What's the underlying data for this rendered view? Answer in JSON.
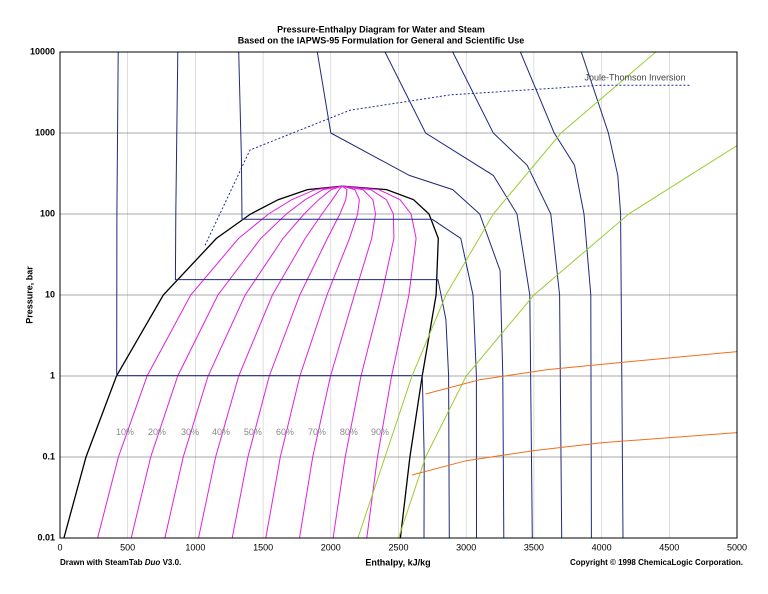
{
  "chart_data": {
    "type": "line",
    "title": "Pressure-Enthalpy Diagram for Water and Steam",
    "subtitle": "Based on the IAPWS-95 Formulation for General and Scientific Use",
    "x_label": "Enthalpy, kJ/kg",
    "y_label": "Pressure, bar",
    "note_left": {
      "prefix": "Drawn with SteamTab",
      "product": "Duo",
      "suffix": "V3.0."
    },
    "note_right": "Copyright © 1998 ChemicaLogic Corporation.",
    "xlim": [
      0,
      5000
    ],
    "ylim": [
      0.01,
      10000
    ],
    "log_y": true,
    "grid": true,
    "xticks": [
      0,
      500,
      1000,
      1500,
      2000,
      2500,
      3000,
      3500,
      4000,
      4500,
      5000
    ],
    "yticks": [
      0.01,
      0.1,
      1,
      10,
      100,
      1000,
      10000
    ],
    "annotations": [
      {
        "text": "Joule-Thomson Inversion",
        "x": 4247,
        "y": 4780,
        "color": "#444444"
      },
      {
        "text": "10%",
        "x": 480,
        "y": 0.2,
        "color": "#888888"
      },
      {
        "text": "20%",
        "x": 716,
        "y": 0.2,
        "color": "#888888"
      },
      {
        "text": "30%",
        "x": 960,
        "y": 0.2,
        "color": "#888888"
      },
      {
        "text": "40%",
        "x": 1189,
        "y": 0.2,
        "color": "#888888"
      },
      {
        "text": "50%",
        "x": 1425,
        "y": 0.2,
        "color": "#888888"
      },
      {
        "text": "60%",
        "x": 1662,
        "y": 0.2,
        "color": "#888888"
      },
      {
        "text": "70%",
        "x": 1898,
        "y": 0.2,
        "color": "#888888"
      },
      {
        "text": "80%",
        "x": 2134,
        "y": 0.2,
        "color": "#888888"
      },
      {
        "text": "90%",
        "x": 2363,
        "y": 0.2,
        "color": "#888888"
      }
    ],
    "series": [
      {
        "color": "#000000",
        "width": 1.3,
        "x": [
          29,
          192,
          417,
          763,
          1155,
          1408,
          1611,
          1827,
          2084,
          2412,
          2611,
          2725,
          2794,
          2778,
          2675,
          2584,
          2514
        ],
        "values": [
          0.01,
          0.1,
          1,
          10,
          50,
          100,
          150,
          200,
          220.6,
          200,
          150,
          100,
          50,
          10,
          1,
          0.1,
          0.01
        ]
      },
      {
        "color": "#e020e0",
        "width": 1,
        "x": [
          278,
          431,
          643,
          965,
          1319,
          1540,
          1711,
          1886,
          2084
        ],
        "values": [
          0.01,
          0.1,
          1,
          10,
          50,
          100,
          150,
          200,
          220.6
        ]
      },
      {
        "color": "#e020e0",
        "width": 1,
        "x": [
          526,
          670,
          869,
          1166,
          1483,
          1671,
          1811,
          1944,
          2084
        ],
        "values": [
          0.01,
          0.1,
          1,
          10,
          50,
          100,
          150,
          200,
          220.6
        ]
      },
      {
        "color": "#e020e0",
        "width": 1,
        "x": [
          775,
          910,
          1094,
          1368,
          1647,
          1803,
          1911,
          2003,
          2084
        ],
        "values": [
          0.01,
          0.1,
          1,
          10,
          50,
          100,
          150,
          200,
          220.6
        ]
      },
      {
        "color": "#e020e0",
        "width": 1,
        "x": [
          1023,
          1149,
          1320,
          1569,
          1811,
          1935,
          2011,
          2061,
          2084
        ],
        "values": [
          0.01,
          0.1,
          1,
          10,
          50,
          100,
          150,
          200,
          220.6
        ]
      },
      {
        "color": "#e020e0",
        "width": 1,
        "x": [
          1272,
          1388,
          1546,
          1771,
          1975,
          2067,
          2111,
          2120,
          2084
        ],
        "values": [
          0.01,
          0.1,
          1,
          10,
          50,
          100,
          150,
          200,
          220.6
        ]
      },
      {
        "color": "#e020e0",
        "width": 1,
        "x": [
          1520,
          1627,
          1772,
          1972,
          2138,
          2198,
          2211,
          2178,
          2084
        ],
        "values": [
          0.01,
          0.1,
          1,
          10,
          50,
          100,
          150,
          200,
          220.6
        ]
      },
      {
        "color": "#e020e0",
        "width": 1,
        "x": [
          1769,
          1866,
          1998,
          2174,
          2302,
          2330,
          2311,
          2237,
          2084
        ],
        "values": [
          0.01,
          0.1,
          1,
          10,
          50,
          100,
          150,
          200,
          220.6
        ]
      },
      {
        "color": "#e020e0",
        "width": 1,
        "x": [
          2017,
          2106,
          2223,
          2375,
          2466,
          2462,
          2411,
          2295,
          2084
        ],
        "values": [
          0.01,
          0.1,
          1,
          10,
          50,
          100,
          150,
          200,
          220.6
        ]
      },
      {
        "color": "#e020e0",
        "width": 1,
        "x": [
          2266,
          2345,
          2449,
          2577,
          2630,
          2593,
          2511,
          2354,
          2084
        ],
        "values": [
          0.01,
          0.1,
          1,
          10,
          50,
          100,
          150,
          200,
          220.6
        ]
      },
      {
        "color": "#1f2a7a",
        "width": 1,
        "x": [
          430,
          420,
          419,
          2676,
          2690,
          2688
        ],
        "values": [
          10000,
          100,
          1.01,
          1.01,
          0.1,
          0.01
        ]
      },
      {
        "color": "#1f2a7a",
        "width": 1,
        "x": [
          870,
          855,
          852,
          2792,
          2850,
          2870,
          2875
        ],
        "values": [
          10000,
          100,
          15.5,
          15.5,
          5,
          1,
          0.01
        ]
      },
      {
        "color": "#1f2a7a",
        "width": 1,
        "x": [
          1320,
          1340,
          1344,
          2749,
          2960,
          3050,
          3075,
          3076
        ],
        "values": [
          10000,
          500,
          85.9,
          85.9,
          50,
          10,
          1,
          0.01
        ]
      },
      {
        "color": "#1f2a7a",
        "width": 1,
        "x": [
          1900,
          2000,
          2580,
          2900,
          3100,
          3250,
          3270,
          3278
        ],
        "values": [
          10000,
          1000,
          300,
          200,
          100,
          20,
          1,
          0.01
        ]
      },
      {
        "color": "#1f2a7a",
        "width": 1,
        "x": [
          2400,
          2700,
          3200,
          3375,
          3470,
          3488
        ],
        "values": [
          10000,
          1000,
          300,
          100,
          10,
          0.01
        ]
      },
      {
        "color": "#1f2a7a",
        "width": 1,
        "x": [
          2900,
          3200,
          3450,
          3625,
          3690,
          3705
        ],
        "values": [
          10000,
          1000,
          400,
          100,
          10,
          0.01
        ]
      },
      {
        "color": "#1f2a7a",
        "width": 1,
        "x": [
          3400,
          3650,
          3800,
          3870,
          3920,
          3925
        ],
        "values": [
          10000,
          1000,
          400,
          100,
          10,
          0.01
        ]
      },
      {
        "color": "#1f2a7a",
        "width": 1,
        "x": [
          3850,
          4050,
          4120,
          4140,
          4158
        ],
        "values": [
          10000,
          1000,
          300,
          100,
          0.01
        ]
      },
      {
        "color": "#9acd32",
        "width": 1,
        "x": [
          2200,
          2400,
          2600,
          2850,
          3200,
          3700,
          4400
        ],
        "values": [
          0.01,
          0.1,
          1,
          10,
          100,
          1000,
          10000
        ]
      },
      {
        "color": "#9acd32",
        "width": 1,
        "x": [
          2500,
          2700,
          3000,
          3500,
          4200,
          5000
        ],
        "values": [
          0.01,
          0.1,
          1,
          10,
          100,
          700
        ]
      },
      {
        "color": "#f07020",
        "width": 1,
        "x": [
          2600,
          3000,
          3500,
          4000,
          5000
        ],
        "values": [
          0.06,
          0.09,
          0.12,
          0.15,
          0.2
        ]
      },
      {
        "color": "#f07020",
        "width": 1,
        "x": [
          2700,
          3100,
          3600,
          4200,
          5000
        ],
        "values": [
          0.6,
          0.9,
          1.2,
          1.5,
          2
        ]
      },
      {
        "color": "#1f2a9a",
        "width": 1,
        "dash": true,
        "x": [
          1071,
          1403,
          2142,
          2880,
          3988,
          4653
        ],
        "values": [
          41,
          617,
          1914,
          2954,
          3890,
          3890
        ]
      }
    ]
  }
}
